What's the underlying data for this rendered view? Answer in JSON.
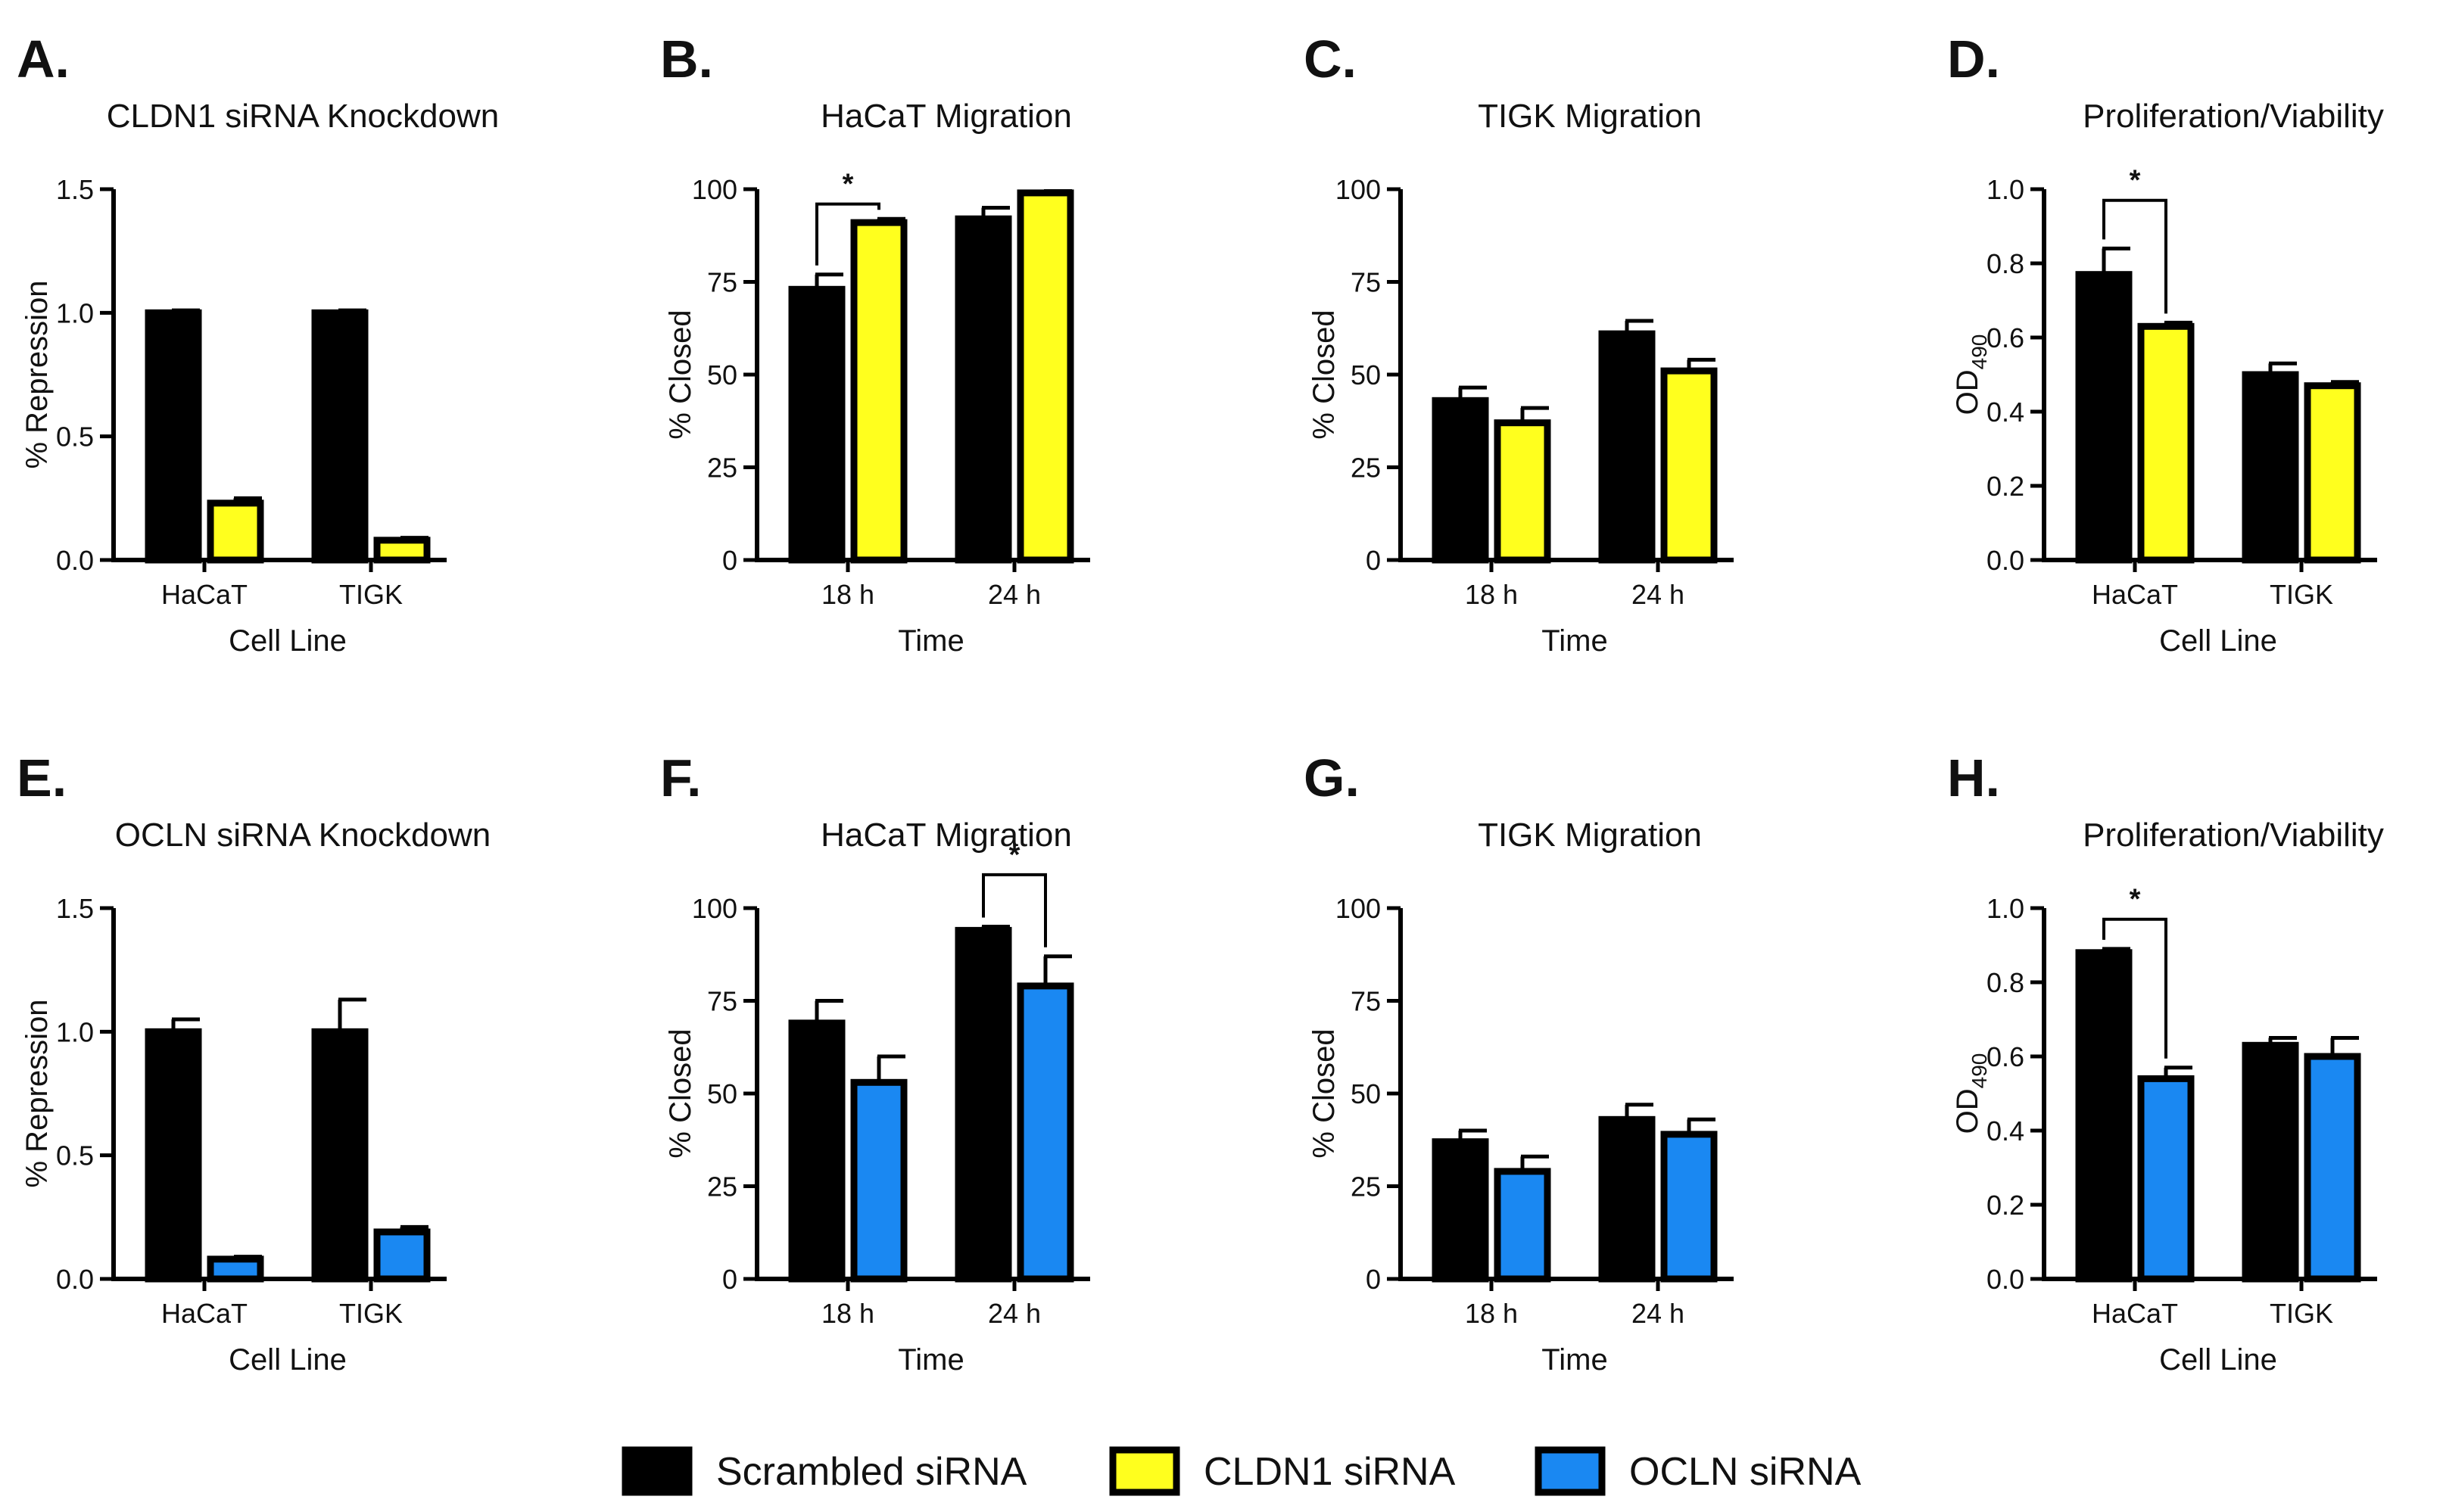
{
  "colors": {
    "scrambled": "#000000",
    "cldn1": "#FFFF1E",
    "ocln": "#1A88F2",
    "axis": "#000000",
    "text": "#111111"
  },
  "legend": [
    {
      "key": "scrambled",
      "label": "Scrambled siRNA"
    },
    {
      "key": "cldn1",
      "label": "CLDN1 siRNA"
    },
    {
      "key": "ocln",
      "label": "OCLN siRNA"
    }
  ],
  "chart_data": [
    {
      "letter": "A.",
      "type": "bar",
      "title": "CLDN1 siRNA Knockdown",
      "xlabel": "Cell Line",
      "ylabel": "% Repression",
      "categories": [
        "HaCaT",
        "TIGK"
      ],
      "ylim": [
        0,
        1.5
      ],
      "yticks": [
        "0.0",
        "0.5",
        "1.0",
        "1.5"
      ],
      "series": [
        {
          "name": "Scrambled siRNA",
          "color_key": "scrambled",
          "values": [
            1.0,
            1.0
          ],
          "errors": [
            0.01,
            0.01
          ]
        },
        {
          "name": "CLDN1 siRNA",
          "color_key": "cldn1",
          "values": [
            0.23,
            0.08
          ],
          "errors": [
            0.02,
            0.01
          ]
        }
      ],
      "significance": []
    },
    {
      "letter": "B.",
      "type": "bar",
      "title": "HaCaT Migration",
      "xlabel": "Time",
      "ylabel": "% Closed",
      "categories": [
        "18 h",
        "24 h"
      ],
      "ylim": [
        0,
        100
      ],
      "yticks": [
        "0",
        "25",
        "50",
        "75",
        "100"
      ],
      "series": [
        {
          "name": "Scrambled siRNA",
          "color_key": "scrambled",
          "values": [
            73,
            92
          ],
          "errors": [
            4,
            3
          ]
        },
        {
          "name": "CLDN1 siRNA",
          "color_key": "cldn1",
          "values": [
            91,
            99
          ],
          "errors": [
            1,
            0.5
          ]
        }
      ],
      "significance": [
        {
          "category": 0,
          "label": "*",
          "y": 96
        }
      ]
    },
    {
      "letter": "C.",
      "type": "bar",
      "title": "TIGK Migration",
      "xlabel": "Time",
      "ylabel": "% Closed",
      "categories": [
        "18 h",
        "24 h"
      ],
      "ylim": [
        0,
        100
      ],
      "yticks": [
        "0",
        "25",
        "50",
        "75",
        "100"
      ],
      "series": [
        {
          "name": "Scrambled siRNA",
          "color_key": "scrambled",
          "values": [
            43,
            61
          ],
          "errors": [
            3.5,
            3.5
          ]
        },
        {
          "name": "CLDN1 siRNA",
          "color_key": "cldn1",
          "values": [
            37,
            51
          ],
          "errors": [
            4,
            3
          ]
        }
      ],
      "significance": []
    },
    {
      "letter": "D.",
      "type": "bar",
      "title": "Proliferation/Viability",
      "xlabel": "Cell Line",
      "ylabel": "OD",
      "ylabel_sub": "490",
      "categories": [
        "HaCaT",
        "TIGK"
      ],
      "ylim": [
        0,
        1.0
      ],
      "yticks": [
        "0.0",
        "0.2",
        "0.4",
        "0.6",
        "0.8",
        "1.0"
      ],
      "series": [
        {
          "name": "Scrambled siRNA",
          "color_key": "scrambled",
          "values": [
            0.77,
            0.5
          ],
          "errors": [
            0.07,
            0.03
          ]
        },
        {
          "name": "CLDN1 siRNA",
          "color_key": "cldn1",
          "values": [
            0.63,
            0.47
          ],
          "errors": [
            0.01,
            0.01
          ]
        }
      ],
      "significance": [
        {
          "category": 0,
          "label": "*",
          "y": 0.97
        }
      ]
    },
    {
      "letter": "E.",
      "type": "bar",
      "title": "OCLN siRNA Knockdown",
      "xlabel": "Cell Line",
      "ylabel": "% Repression",
      "categories": [
        "HaCaT",
        "TIGK"
      ],
      "ylim": [
        0,
        1.5
      ],
      "yticks": [
        "0.0",
        "0.5",
        "1.0",
        "1.5"
      ],
      "series": [
        {
          "name": "Scrambled siRNA",
          "color_key": "scrambled",
          "values": [
            1.0,
            1.0
          ],
          "errors": [
            0.05,
            0.13
          ]
        },
        {
          "name": "OCLN siRNA",
          "color_key": "ocln",
          "values": [
            0.08,
            0.19
          ],
          "errors": [
            0.01,
            0.02
          ]
        }
      ],
      "significance": []
    },
    {
      "letter": "F.",
      "type": "bar",
      "title": "HaCaT Migration",
      "xlabel": "Time",
      "ylabel": "% Closed",
      "categories": [
        "18 h",
        "24 h"
      ],
      "ylim": [
        0,
        100
      ],
      "yticks": [
        "0",
        "25",
        "50",
        "75",
        "100"
      ],
      "series": [
        {
          "name": "Scrambled siRNA",
          "color_key": "scrambled",
          "values": [
            69,
            94
          ],
          "errors": [
            6,
            1
          ]
        },
        {
          "name": "OCLN siRNA",
          "color_key": "ocln",
          "values": [
            53,
            79
          ],
          "errors": [
            7,
            8
          ]
        }
      ],
      "significance": [
        {
          "category": 1,
          "label": "*",
          "y": 109
        }
      ]
    },
    {
      "letter": "G.",
      "type": "bar",
      "title": "TIGK Migration",
      "xlabel": "Time",
      "ylabel": "% Closed",
      "categories": [
        "18 h",
        "24 h"
      ],
      "ylim": [
        0,
        100
      ],
      "yticks": [
        "0",
        "25",
        "50",
        "75",
        "100"
      ],
      "series": [
        {
          "name": "Scrambled siRNA",
          "color_key": "scrambled",
          "values": [
            37,
            43
          ],
          "errors": [
            3,
            4
          ]
        },
        {
          "name": "OCLN siRNA",
          "color_key": "ocln",
          "values": [
            29,
            39
          ],
          "errors": [
            4,
            4
          ]
        }
      ],
      "significance": []
    },
    {
      "letter": "H.",
      "type": "bar",
      "title": "Proliferation/Viability",
      "xlabel": "Cell Line",
      "ylabel": "OD",
      "ylabel_sub": "490",
      "categories": [
        "HaCaT",
        "TIGK"
      ],
      "ylim": [
        0,
        1.0
      ],
      "yticks": [
        "0.0",
        "0.2",
        "0.4",
        "0.6",
        "0.8",
        "1.0"
      ],
      "series": [
        {
          "name": "Scrambled siRNA",
          "color_key": "scrambled",
          "values": [
            0.88,
            0.63
          ],
          "errors": [
            0.01,
            0.02
          ]
        },
        {
          "name": "OCLN siRNA",
          "color_key": "ocln",
          "values": [
            0.54,
            0.6
          ],
          "errors": [
            0.03,
            0.05
          ]
        }
      ],
      "significance": [
        {
          "category": 0,
          "label": "*",
          "y": 0.97
        }
      ]
    }
  ]
}
